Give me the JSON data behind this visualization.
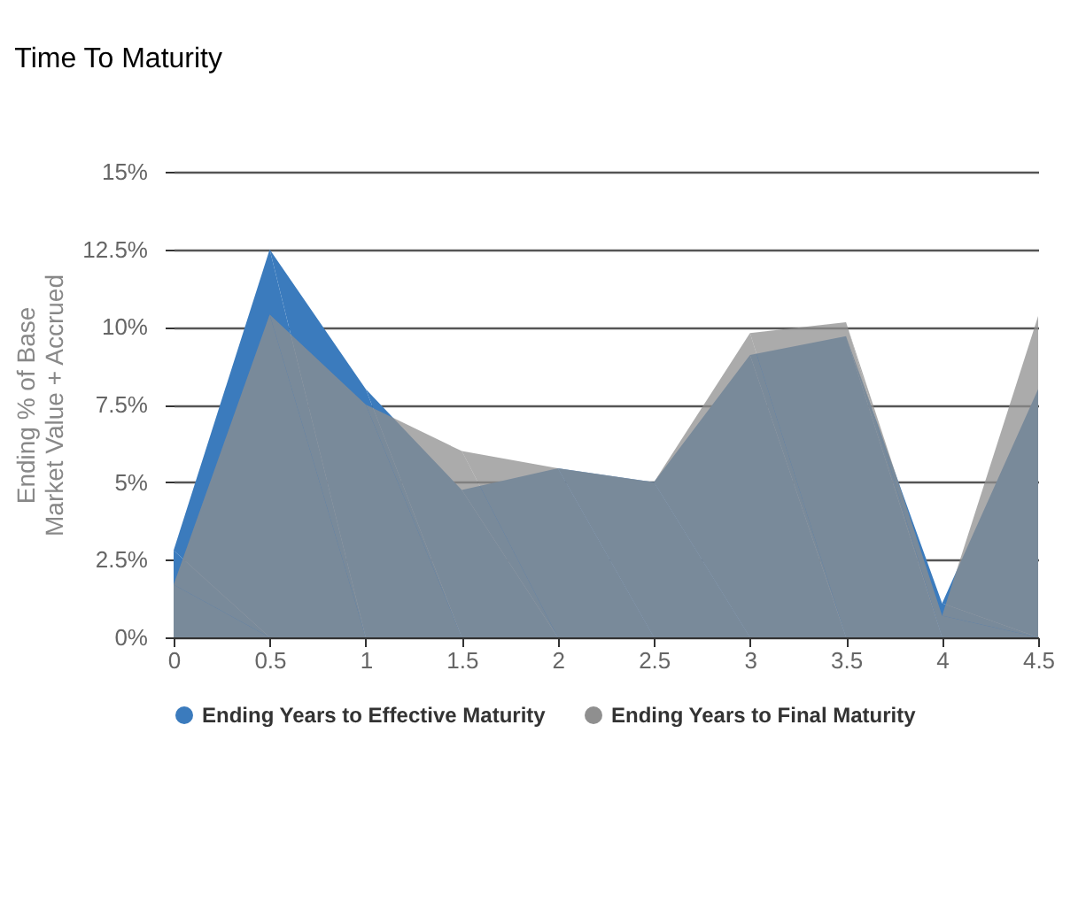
{
  "chart_data": {
    "type": "area",
    "title": "Time To Maturity",
    "ylabel": "Ending % of Base Market Value + Accrued",
    "x": [
      0,
      0.5,
      1,
      1.5,
      2,
      2.5,
      3,
      3.5,
      4,
      4.5
    ],
    "series": [
      {
        "name": "Ending Years to Effective Maturity",
        "color": "#3b7bbd",
        "values": [
          2.8,
          12.5,
          8.0,
          4.75,
          5.45,
          5.0,
          9.1,
          9.7,
          1.1,
          8.0
        ]
      },
      {
        "name": "Ending Years to Final Maturity",
        "color": "#8f8f8f",
        "values": [
          1.7,
          10.4,
          7.5,
          6.0,
          5.45,
          5.0,
          9.8,
          10.15,
          0.7,
          10.35
        ]
      }
    ],
    "xlim": [
      0,
      4.5
    ],
    "xticks": [
      0,
      0.5,
      1,
      1.5,
      2,
      2.5,
      3,
      3.5,
      4,
      4.5
    ],
    "ylim": [
      0,
      15
    ],
    "yticks": [
      {
        "value": 0,
        "label": "0%"
      },
      {
        "value": 2.5,
        "label": "2.5%"
      },
      {
        "value": 5,
        "label": "5%"
      },
      {
        "value": 7.5,
        "label": "7.5%"
      },
      {
        "value": 10,
        "label": "10%"
      },
      {
        "value": 12.5,
        "label": "12.5%"
      },
      {
        "value": 15,
        "label": "15%"
      }
    ],
    "grid": "y",
    "legend": "bottom"
  }
}
